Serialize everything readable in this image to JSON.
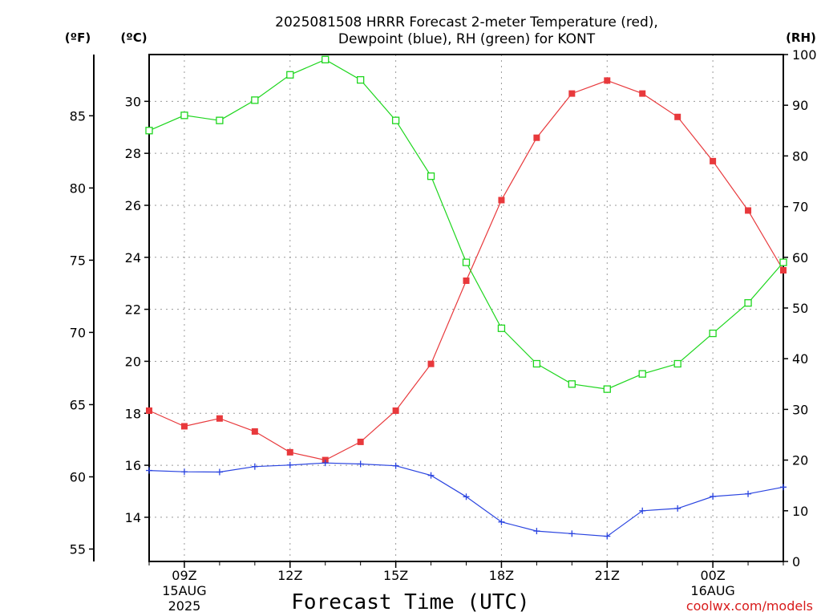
{
  "title_line1": "2025081508 HRRR Forecast 2-meter Temperature (red),",
  "title_line2": "Dewpoint (blue), RH (green) for KONT",
  "units": {
    "fahrenheit": "(ºF)",
    "celsius": "(ºC)",
    "rh": "(RH)"
  },
  "x_axis": {
    "label": "Forecast Time (UTC)",
    "ticks": [
      {
        "h": 1,
        "label": "09Z",
        "sub1": "15AUG",
        "sub2": "2025"
      },
      {
        "h": 4,
        "label": "12Z",
        "sub1": "",
        "sub2": ""
      },
      {
        "h": 7,
        "label": "15Z",
        "sub1": "",
        "sub2": ""
      },
      {
        "h": 10,
        "label": "18Z",
        "sub1": "",
        "sub2": ""
      },
      {
        "h": 13,
        "label": "21Z",
        "sub1": "",
        "sub2": ""
      },
      {
        "h": 16,
        "label": "00Z",
        "sub1": "16AUG",
        "sub2": ""
      }
    ]
  },
  "credit": "coolwx.com/models",
  "colors": {
    "temperature": "#e8393c",
    "dewpoint": "#2a44e0",
    "rh": "#1ed61e",
    "grid": "#9a9a9a"
  },
  "chart_data": {
    "type": "line",
    "x_hours_from_08Z": [
      0,
      1,
      2,
      3,
      4,
      5,
      6,
      7,
      8,
      9,
      10,
      11,
      12,
      13,
      14,
      15,
      16,
      17,
      18
    ],
    "xlim": [
      0,
      18
    ],
    "celsius_axis": {
      "ticks": [
        14,
        16,
        18,
        20,
        22,
        24,
        26,
        28,
        30
      ],
      "range": [
        12.3,
        31.8
      ]
    },
    "fahrenheit_axis": {
      "ticks": [
        55,
        60,
        65,
        70,
        75,
        80,
        85
      ]
    },
    "rh_axis": {
      "ticks": [
        0,
        10,
        20,
        30,
        40,
        50,
        60,
        70,
        80,
        90,
        100
      ],
      "range": [
        0,
        100
      ]
    },
    "series": [
      {
        "name": "2-meter Temperature",
        "axis": "celsius",
        "marker": "filled-square",
        "values": [
          18.1,
          17.5,
          17.8,
          17.3,
          16.5,
          16.2,
          16.9,
          18.1,
          19.9,
          23.1,
          26.2,
          28.6,
          30.3,
          30.8,
          30.3,
          29.4,
          27.7,
          25.8,
          23.5
        ]
      },
      {
        "name": "Dewpoint",
        "axis": "celsius",
        "marker": "plus",
        "values": [
          15.8,
          15.75,
          15.74,
          15.95,
          16.01,
          16.09,
          16.05,
          15.98,
          15.61,
          14.79,
          13.82,
          13.47,
          13.37,
          13.27,
          14.25,
          14.34,
          14.8,
          14.9,
          15.16
        ]
      },
      {
        "name": "RH",
        "axis": "rh",
        "marker": "open-square",
        "values": [
          85,
          88,
          87,
          91,
          96,
          99,
          95,
          87,
          76,
          59,
          46,
          39,
          35,
          34,
          37,
          39,
          45,
          51,
          59
        ]
      }
    ]
  }
}
